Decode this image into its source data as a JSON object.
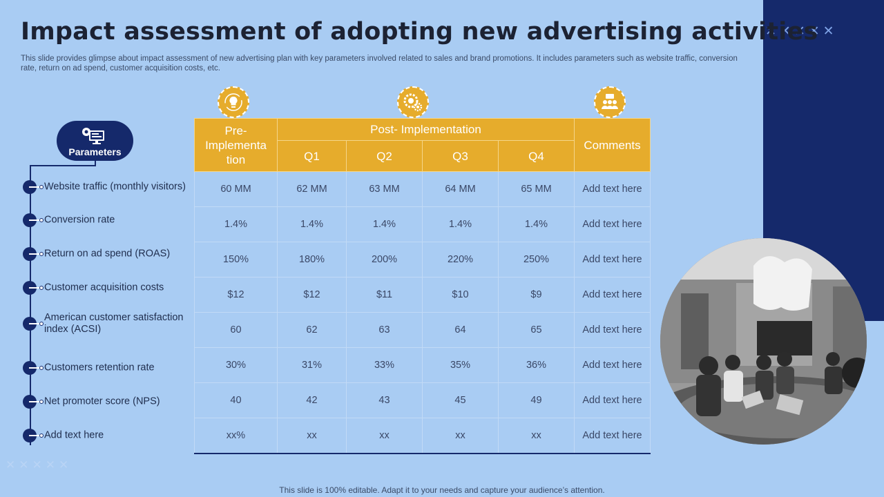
{
  "slide": {
    "title": "Impact assessment of adopting new advertising activities",
    "subtitle": "This slide provides glimpse about impact assessment of new advertising plan with key parameters involved related to sales and brand promotions. It includes parameters such as website traffic, conversion rate, return on ad spend, customer acquisition costs, etc.",
    "footer": "This slide is 100% editable. Adapt it to your needs and capture your audience’s attention.",
    "deco_top": "✕✕✕✕✕",
    "deco_bottom": "✕✕✕✕✕"
  },
  "parameters": {
    "label": "Parameters",
    "items": [
      "Website traffic (monthly visitors)",
      "Conversion rate",
      "Return on ad spend (ROAS)",
      "Customer acquisition costs",
      "American customer satisfaction index (ACSI)",
      "Customers retention rate",
      "Net promoter score (NPS)",
      "Add text here"
    ]
  },
  "table": {
    "header_pre": "Pre- Implementa tion",
    "header_post": "Post- Implementation",
    "header_comments": "Comments",
    "quarters": [
      "Q1",
      "Q2",
      "Q3",
      "Q4"
    ],
    "rows": [
      {
        "pre": "60 MM",
        "q1": "62 MM",
        "q2": "63 MM",
        "q3": "64 MM",
        "q4": "65 MM",
        "comment": "Add text here"
      },
      {
        "pre": "1.4%",
        "q1": "1.4%",
        "q2": "1.4%",
        "q3": "1.4%",
        "q4": "1.4%",
        "comment": "Add text here"
      },
      {
        "pre": "150%",
        "q1": "180%",
        "q2": "200%",
        "q3": "220%",
        "q4": "250%",
        "comment": "Add text here"
      },
      {
        "pre": "$12",
        "q1": "$12",
        "q2": "$11",
        "q3": "$10",
        "q4": "$9",
        "comment": "Add text here"
      },
      {
        "pre": "60",
        "q1": "62",
        "q2": "63",
        "q3": "64",
        "q4": "65",
        "comment": "Add text here"
      },
      {
        "pre": "30%",
        "q1": "31%",
        "q2": "33%",
        "q3": "35%",
        "q4": "36%",
        "comment": "Add text here"
      },
      {
        "pre": "40",
        "q1": "42",
        "q2": "43",
        "q3": "45",
        "q4": "49",
        "comment": "Add text here"
      },
      {
        "pre": "xx%",
        "q1": "xx",
        "q2": "xx",
        "q3": "xx",
        "q4": "xx",
        "comment": "Add text here"
      }
    ]
  },
  "icons": {
    "pre": "lightbulb-icon",
    "post": "gears-icon",
    "comments": "people-icon",
    "parameters": "monitor-settings-icon"
  },
  "colors": {
    "background": "#a9ccf3",
    "navy": "#15296b",
    "gold": "#e6ac2c"
  }
}
